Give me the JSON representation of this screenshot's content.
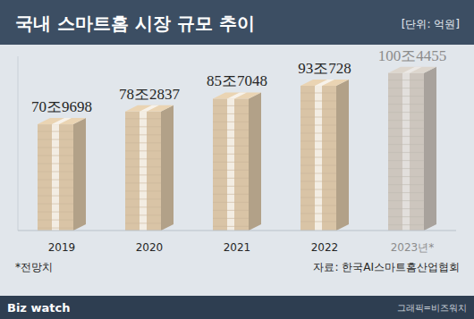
{
  "chart_data": {
    "type": "bar",
    "title": "국내 스마트홈 시장 규모 추이",
    "subtitle": "[단위: 억원]",
    "categories": [
      "2019",
      "2020",
      "2021",
      "2022",
      "2023년*"
    ],
    "values": [
      709698,
      782837,
      857048,
      930728,
      1004455
    ],
    "value_labels": [
      "70조9698",
      "78조2837",
      "85조7048",
      "93조728",
      "100조4455"
    ],
    "colors": [
      "#d9c4a6",
      "#d9c4a6",
      "#d9c4a6",
      "#d9c4a6",
      "#cdc6be"
    ],
    "ylim": [
      100000,
      1100000
    ],
    "data_labels": true,
    "tick_labels": "x",
    "grid": false,
    "annotations": [
      "*전망치",
      "자료: 한국AI스마트홈산업협회",
      "Biz watch",
      "그래픽=비즈워치"
    ]
  }
}
